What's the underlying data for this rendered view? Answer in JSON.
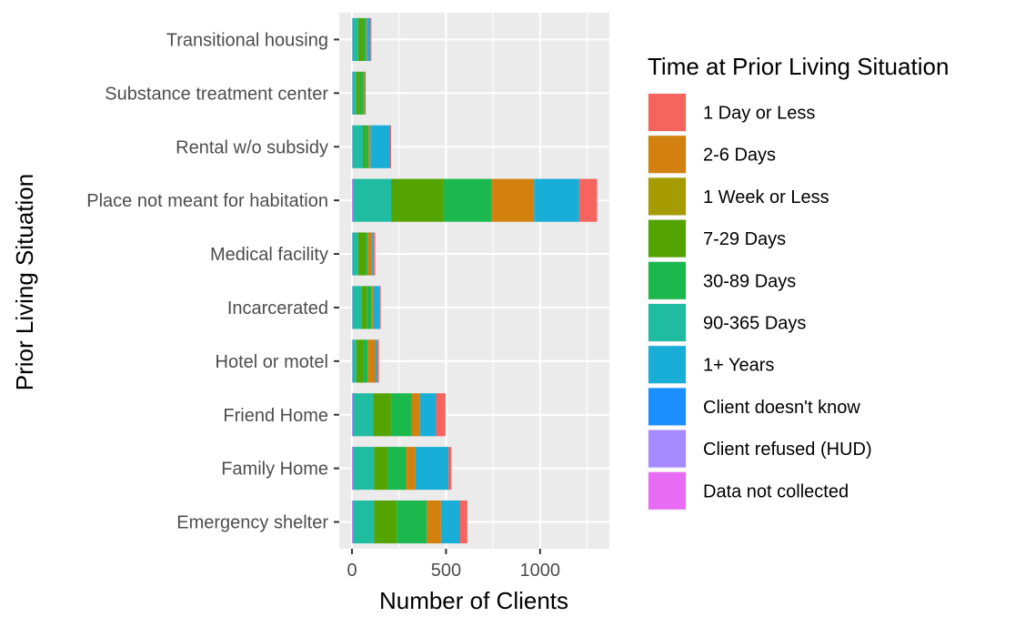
{
  "chart_data": {
    "type": "bar",
    "orientation": "horizontal",
    "stacked": true,
    "xlabel": "Number of Clients",
    "ylabel": "Prior Living Situation",
    "xlim": [
      0,
      1370
    ],
    "xticks": [
      0,
      500,
      1000
    ],
    "grid": true,
    "legend_title": "Time at Prior Living Situation",
    "legend_position": "right",
    "categories": [
      "Emergency shelter",
      "Family Home",
      "Friend Home",
      "Hotel or motel",
      "Incarcerated",
      "Medical facility",
      "Place not meant for habitation",
      "Rental w/o subsidy",
      "Substance treatment center",
      "Transitional housing"
    ],
    "series": [
      {
        "name": "Data not collected",
        "color": "#E76BF3",
        "values": [
          2,
          2,
          2,
          1,
          1,
          1,
          2,
          1,
          1,
          1
        ]
      },
      {
        "name": "Client refused (HUD)",
        "color": "#A58AFF",
        "values": [
          3,
          3,
          2,
          1,
          1,
          1,
          3,
          1,
          1,
          1
        ]
      },
      {
        "name": "Client doesn't know",
        "color": "#1A8FFF",
        "values": [
          3,
          3,
          3,
          1,
          1,
          1,
          3,
          1,
          1,
          1
        ]
      },
      {
        "name": "90-365 Days",
        "color": "#1FBCA2",
        "values": [
          110,
          110,
          105,
          20,
          50,
          30,
          200,
          55,
          20,
          30
        ]
      },
      {
        "name": "7-29 Days",
        "color": "#53A400",
        "values": [
          120,
          70,
          95,
          35,
          25,
          40,
          280,
          10,
          20,
          25
        ]
      },
      {
        "name": "30-89 Days",
        "color": "#1BB84D",
        "values": [
          160,
          100,
          110,
          25,
          25,
          10,
          255,
          20,
          15,
          15
        ]
      },
      {
        "name": "2-6 Days",
        "color": "#D2810E",
        "values": [
          75,
          50,
          45,
          40,
          10,
          20,
          225,
          10,
          10,
          5
        ]
      },
      {
        "name": "1 Week or Less",
        "color": "#A69B00",
        "values": [
          0,
          0,
          0,
          0,
          0,
          0,
          0,
          0,
          0,
          0
        ]
      },
      {
        "name": "1+ Years",
        "color": "#19AED8",
        "values": [
          100,
          175,
          85,
          10,
          35,
          10,
          240,
          105,
          5,
          20
        ]
      },
      {
        "name": "1 Day or Less",
        "color": "#F7635D",
        "values": [
          40,
          15,
          50,
          10,
          5,
          10,
          95,
          5,
          0,
          5
        ]
      }
    ],
    "legend_order": [
      "1 Day or Less",
      "2-6 Days",
      "1 Week or Less",
      "7-29 Days",
      "30-89 Days",
      "90-365 Days",
      "1+ Years",
      "Client doesn't know",
      "Client refused (HUD)",
      "Data not collected"
    ]
  }
}
